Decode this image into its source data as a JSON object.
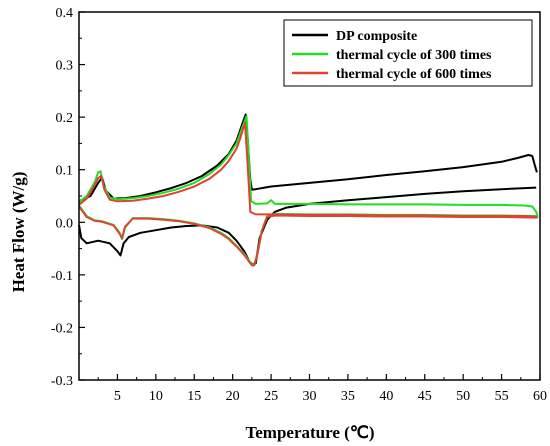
{
  "chart_data": {
    "type": "line",
    "title": "",
    "xlabel": "Temperature (℃)",
    "ylabel": "Heat Flow (W/g)",
    "xlim": [
      0,
      60
    ],
    "ylim": [
      -0.3,
      0.4
    ],
    "x_ticks": [
      5,
      10,
      15,
      20,
      25,
      30,
      35,
      40,
      45,
      50,
      55,
      60
    ],
    "y_ticks": [
      -0.3,
      -0.2,
      -0.1,
      0.0,
      0.1,
      0.2,
      0.3,
      0.4
    ],
    "x_tick_labels": [
      "5",
      "10",
      "15",
      "20",
      "25",
      "30",
      "35",
      "40",
      "45",
      "50",
      "55",
      "60"
    ],
    "y_tick_labels": [
      "-0.3",
      "-0.2",
      "-0.1",
      "0.0",
      "0.1",
      "0.2",
      "0.3",
      "0.4"
    ],
    "grid": false,
    "legend_position": "top-right",
    "series": [
      {
        "name": "DP composite",
        "color": "#000000",
        "branches": [
          {
            "x": [
              0.0,
              1.5,
              2.5,
              3.0,
              3.5,
              4.5,
              6,
              8,
              10,
              12,
              14,
              16,
              18,
              19.5,
              20.5,
              21.2,
              21.7,
              22.0,
              22.3,
              22.5,
              23.0,
              25.0,
              30,
              35,
              40,
              45,
              50,
              55,
              57,
              58.5,
              59.0,
              59.3,
              59.6
            ],
            "y": [
              0.04,
              0.05,
              0.075,
              0.085,
              0.06,
              0.045,
              0.046,
              0.05,
              0.057,
              0.065,
              0.075,
              0.088,
              0.108,
              0.13,
              0.155,
              0.185,
              0.205,
              0.15,
              0.08,
              0.062,
              0.063,
              0.068,
              0.075,
              0.082,
              0.09,
              0.097,
              0.105,
              0.115,
              0.122,
              0.128,
              0.126,
              0.11,
              0.095
            ]
          },
          {
            "x": [
              0.0,
              0.3,
              1.0,
              2.5,
              4.0,
              5.0,
              5.4,
              5.8,
              6.5,
              8,
              10,
              12,
              14,
              16,
              18,
              19.5,
              20.5,
              21.5,
              22.2,
              22.6,
              23.0,
              23.5,
              24.5,
              25.5,
              27,
              30,
              35,
              40,
              45,
              50,
              55,
              59.5
            ],
            "y": [
              -0.005,
              -0.03,
              -0.04,
              -0.035,
              -0.04,
              -0.055,
              -0.063,
              -0.04,
              -0.028,
              -0.02,
              -0.015,
              -0.01,
              -0.007,
              -0.006,
              -0.01,
              -0.02,
              -0.035,
              -0.055,
              -0.075,
              -0.08,
              -0.078,
              -0.03,
              0.005,
              0.02,
              0.028,
              0.035,
              0.042,
              0.048,
              0.054,
              0.059,
              0.063,
              0.066
            ]
          }
        ]
      },
      {
        "name": "thermal cycle of 300 times",
        "color": "#22dd22",
        "branches": [
          {
            "x": [
              0.0,
              1.0,
              2.0,
              2.5,
              2.8,
              3.2,
              4.0,
              5.0,
              7,
              9,
              11,
              13,
              15,
              17,
              18.5,
              19.5,
              20.5,
              21.0,
              21.5,
              21.8,
              22.0,
              22.4,
              23,
              24.5,
              25.0,
              25.5,
              30,
              35,
              40,
              45,
              50,
              55,
              58,
              59.0,
              59.5,
              59.7
            ],
            "y": [
              0.038,
              0.05,
              0.075,
              0.095,
              0.097,
              0.07,
              0.047,
              0.044,
              0.046,
              0.05,
              0.056,
              0.064,
              0.075,
              0.092,
              0.11,
              0.128,
              0.15,
              0.17,
              0.19,
              0.202,
              0.15,
              0.04,
              0.035,
              0.036,
              0.042,
              0.035,
              0.035,
              0.034,
              0.034,
              0.034,
              0.033,
              0.033,
              0.032,
              0.03,
              0.02,
              0.01
            ]
          },
          {
            "x": [
              0.0,
              1.0,
              2.0,
              3.0,
              4.5,
              5.3,
              5.6,
              6.0,
              7,
              9,
              11,
              13,
              15,
              17,
              18.5,
              19.5,
              20.5,
              21.5,
              22.0,
              22.5,
              22.8,
              23.2,
              23.8,
              24.5,
              25.5,
              30,
              35,
              40,
              45,
              50,
              55,
              59.5
            ],
            "y": [
              0.032,
              0.012,
              0.004,
              0.002,
              -0.005,
              -0.02,
              -0.032,
              -0.01,
              0.008,
              0.008,
              0.006,
              0.003,
              -0.002,
              -0.01,
              -0.02,
              -0.03,
              -0.045,
              -0.06,
              -0.07,
              -0.08,
              -0.08,
              -0.06,
              -0.015,
              0.012,
              0.016,
              0.015,
              0.015,
              0.014,
              0.014,
              0.013,
              0.013,
              0.012
            ]
          }
        ]
      },
      {
        "name": "thermal cycle of 600 times",
        "color": "#dd4433",
        "branches": [
          {
            "x": [
              0.0,
              1.0,
              2.0,
              2.5,
              2.9,
              3.3,
              4.0,
              5.0,
              7,
              9,
              11,
              13,
              15,
              17,
              18.5,
              19.5,
              20.5,
              21.0,
              21.4,
              21.6,
              21.9,
              22.3,
              23,
              25,
              30,
              35,
              40,
              45,
              50,
              55,
              58,
              59.0,
              59.5,
              59.7
            ],
            "y": [
              0.033,
              0.045,
              0.07,
              0.084,
              0.088,
              0.062,
              0.043,
              0.04,
              0.041,
              0.045,
              0.05,
              0.058,
              0.068,
              0.083,
              0.1,
              0.117,
              0.14,
              0.16,
              0.18,
              0.188,
              0.12,
              0.02,
              0.015,
              0.015,
              0.014,
              0.014,
              0.013,
              0.013,
              0.012,
              0.012,
              0.012,
              0.011,
              0.01,
              0.008
            ]
          },
          {
            "x": [
              0.0,
              1.0,
              2.0,
              3.0,
              4.5,
              5.3,
              5.6,
              6.0,
              7,
              9,
              11,
              13,
              15,
              17,
              18.5,
              19.5,
              20.5,
              21.5,
              22.0,
              22.5,
              22.8,
              23.2,
              23.8,
              24.5,
              25.5,
              30,
              35,
              40,
              45,
              50,
              55,
              59.5
            ],
            "y": [
              0.03,
              0.01,
              0.003,
              0.001,
              -0.006,
              -0.022,
              -0.03,
              -0.008,
              0.007,
              0.007,
              0.005,
              0.002,
              -0.003,
              -0.011,
              -0.022,
              -0.032,
              -0.046,
              -0.062,
              -0.072,
              -0.082,
              -0.082,
              -0.062,
              -0.016,
              0.01,
              0.013,
              0.012,
              0.012,
              0.011,
              0.011,
              0.01,
              0.01,
              0.009
            ]
          }
        ]
      }
    ]
  }
}
